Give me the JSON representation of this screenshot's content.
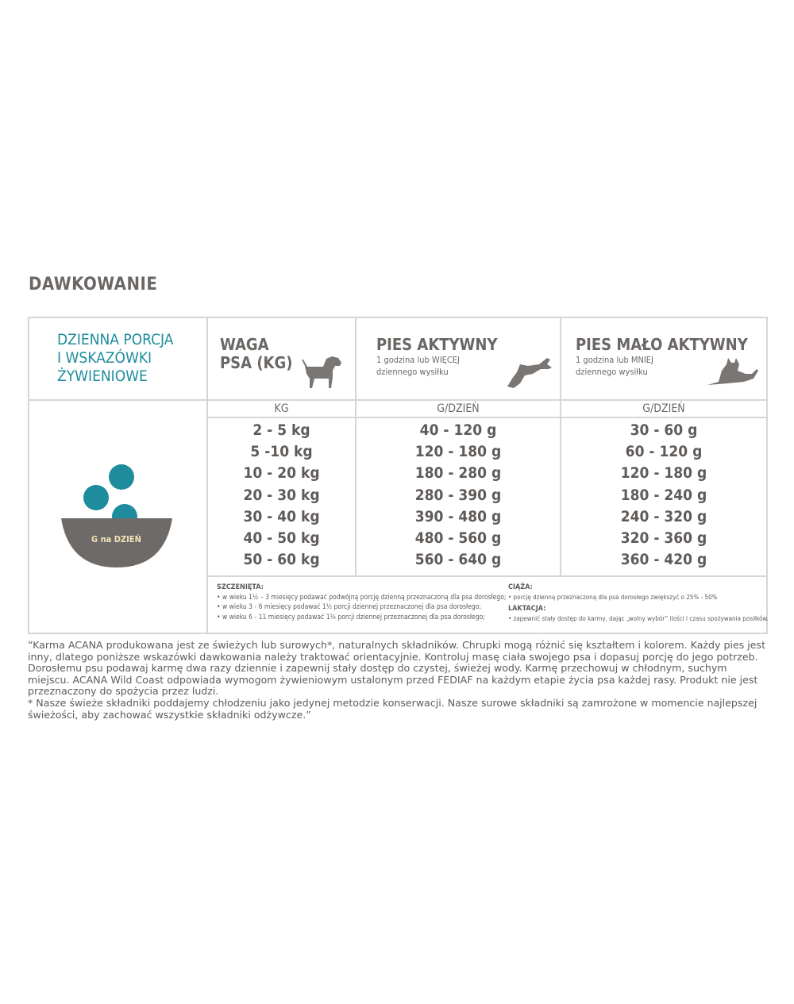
{
  "title": "DAWKOWANIE",
  "table": {
    "intro": [
      "DZIENNA PORCJA",
      "I WSKAZÓWKI",
      "ŻYWIENIOWE"
    ],
    "weight_header": [
      "WAGA",
      "PSA (KG)"
    ],
    "active": {
      "title": "PIES AKTYWNY",
      "sub1": "1 godzina lub WIĘCEJ",
      "sub2": "dziennego wysiłku"
    },
    "inactive": {
      "title": "PIES MAŁO AKTYWNY",
      "sub1": "1 godzina lub MNIEJ",
      "sub2": "dziennego wysiłku"
    },
    "unit_kg": "KG",
    "unit_g": "G/DZIEŃ",
    "bowl_label": "G na DZIEŃ",
    "rows": [
      [
        "2 - 5 kg",
        "40 - 120 g",
        "30 - 60 g"
      ],
      [
        "5 -10 kg",
        "120 - 180 g",
        "60 - 120 g"
      ],
      [
        "10 - 20 kg",
        "180 - 280 g",
        "120 - 180 g"
      ],
      [
        "20 - 30 kg",
        "280 - 390 g",
        "180 - 240 g"
      ],
      [
        "30 - 40 kg",
        "390 - 480 g",
        "240 - 320 g"
      ],
      [
        "40 - 50 kg",
        "480 - 560 g",
        "320 - 360 g"
      ],
      [
        "50 - 60 kg",
        "560 - 640 g",
        "360 - 420 g"
      ]
    ],
    "puppies_title": "SZCZENIĘTA:",
    "puppies": [
      "• w wieku 1½ – 3 miesięcy podawać podwójną porcję dzienną przeznaczoną dla psa dorosłego;",
      "• w wieku 3 - 6 miesięcy podawać 1½ porcji dziennej przeznaczonej dla psa dorosłego;",
      "• w wieku 6 - 11 miesięcy podawać 1¼ porcji dziennej przeznaczonej dla psa dorosłego;"
    ],
    "pregnancy_title": "CIĄŻA:",
    "pregnancy": "• porcję dzienną przeznaczoną dla psa dorosłego zwiększyć o 25% - 50%",
    "lactation_title": "LAKTACJA:",
    "lactation": "• zapewnić stały dostęp do karmy, dając „wolny wybór” ilości i czasu spożywania posiłków."
  },
  "colors": {
    "teal": "#1e8c9c",
    "gray": "#6e6a67"
  },
  "footer": {
    "p1": "“Karma ACANA produkowana jest ze świeżych lub surowych*, naturalnych składników. Chrupki mogą różnić się kształtem i kolorem. Każdy pies jest inny, dlatego poniższe wskazówki dawkowania należy traktować orientacyjnie. Kontroluj masę ciała swojego psa i dopasuj porcję do jego potrzeb. Dorosłemu psu podawaj karmę dwa razy dziennie i zapewnij stały dostęp do czystej, świeżej wody. Karmę przechowuj w chłodnym, suchym miejscu. ACANA Wild Coast odpowiada wymogom żywieniowym ustalonym przed FEDIAF na każdym etapie życia psa każdej rasy. Produkt nie jest przeznaczony do spożycia przez ludzi.",
    "p2": "* Nasze świeże składniki poddajemy chłodzeniu jako jedynej metodzie konserwacji. Nasze surowe składniki są zamrożone w momencie najlepszej świeżości, aby zachować wszystkie składniki odżywcze.”"
  }
}
